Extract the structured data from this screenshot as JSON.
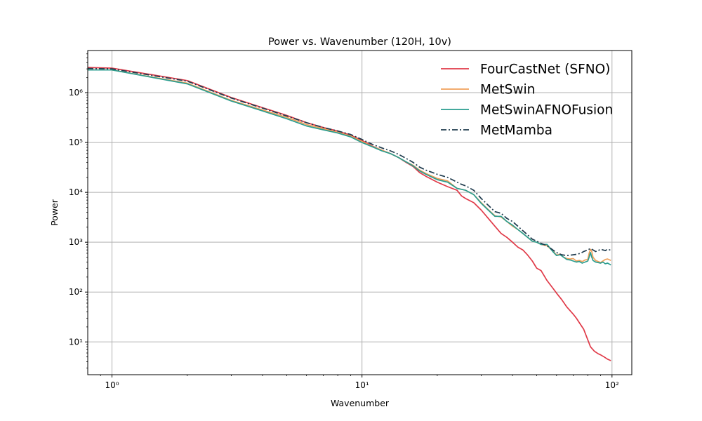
{
  "chart_data": {
    "type": "line",
    "title": "Power vs. Wavenumber (120H, 10v)",
    "xlabel": "Wavenumber",
    "ylabel": "Power",
    "xscale": "log",
    "yscale": "log",
    "xlim": [
      0.8,
      120
    ],
    "ylim": [
      2.2,
      7000000
    ],
    "grid": true,
    "legend_position": "top-right",
    "x_ticks": [
      {
        "value": 1,
        "label": "10⁰"
      },
      {
        "value": 10,
        "label": "10¹"
      },
      {
        "value": 100,
        "label": "10²"
      }
    ],
    "y_ticks": [
      {
        "value": 10,
        "label": "10¹"
      },
      {
        "value": 100,
        "label": "10²"
      },
      {
        "value": 1000,
        "label": "10³"
      },
      {
        "value": 10000,
        "label": "10⁴"
      },
      {
        "value": 100000,
        "label": "10⁵"
      },
      {
        "value": 1000000,
        "label": "10⁶"
      }
    ],
    "series": [
      {
        "name": "FourCastNet (SFNO)",
        "color": "#e03a48",
        "dash": "solid",
        "x": [
          0.8,
          1,
          2,
          3,
          4,
          5,
          6,
          7,
          8,
          9,
          10,
          11,
          12,
          13,
          14,
          15,
          16,
          17,
          18,
          20,
          22,
          24,
          25,
          26,
          28,
          30,
          32,
          34,
          36,
          38,
          40,
          42,
          44,
          46,
          48,
          50,
          52,
          55,
          58,
          60,
          63,
          66,
          70,
          72,
          75,
          77,
          80,
          82,
          85,
          88,
          90,
          93,
          96,
          99
        ],
        "values": [
          3200000,
          3100000,
          1750000,
          800000,
          500000,
          350000,
          250000,
          200000,
          170000,
          140000,
          110000,
          85000,
          70000,
          60000,
          50000,
          40000,
          33000,
          25000,
          21000,
          16000,
          13000,
          11000,
          8500,
          7500,
          6200,
          4400,
          3000,
          2100,
          1500,
          1250,
          1000,
          800,
          700,
          550,
          420,
          300,
          270,
          170,
          120,
          95,
          70,
          50,
          36,
          30,
          22,
          18,
          11,
          8,
          6.5,
          5.8,
          5.5,
          5.0,
          4.5,
          4.2
        ]
      },
      {
        "name": "MetSwin",
        "color": "#f0a05a",
        "dash": "solid",
        "x": [
          0.8,
          1,
          2,
          3,
          4,
          5,
          6,
          7,
          8,
          9,
          10,
          11,
          12,
          13,
          14,
          15,
          16,
          17,
          18,
          20,
          22,
          24,
          25,
          26,
          28,
          30,
          32,
          34,
          36,
          38,
          40,
          42,
          44,
          46,
          48,
          50,
          52,
          55,
          57,
          58,
          60,
          62,
          64,
          66,
          68,
          70,
          72,
          74,
          76,
          78,
          80,
          81,
          82,
          83,
          84,
          86,
          88,
          90,
          92,
          94,
          96,
          98,
          99
        ],
        "values": [
          2850000,
          2850000,
          1550000,
          700000,
          450000,
          320000,
          230000,
          190000,
          160000,
          135000,
          105000,
          83000,
          70000,
          60000,
          50000,
          41000,
          35000,
          28000,
          24000,
          19000,
          17000,
          12000,
          11500,
          11000,
          9000,
          6200,
          4500,
          3400,
          3200,
          2600,
          2100,
          1800,
          1500,
          1250,
          1050,
          1000,
          900,
          850,
          720,
          670,
          550,
          580,
          500,
          470,
          460,
          470,
          420,
          430,
          410,
          440,
          450,
          600,
          720,
          650,
          500,
          430,
          410,
          390,
          420,
          450,
          460,
          440,
          430
        ]
      },
      {
        "name": "MetSwinAFNOFusion",
        "color": "#2a9d8f",
        "dash": "solid",
        "x": [
          0.8,
          1,
          2,
          3,
          4,
          5,
          6,
          7,
          8,
          9,
          10,
          11,
          12,
          13,
          14,
          15,
          16,
          17,
          18,
          20,
          22,
          24,
          25,
          26,
          28,
          30,
          32,
          34,
          36,
          38,
          40,
          42,
          44,
          46,
          48,
          50,
          52,
          55,
          57,
          58,
          60,
          62,
          64,
          66,
          68,
          70,
          72,
          74,
          76,
          78,
          80,
          81,
          82,
          83,
          84,
          86,
          88,
          90,
          92,
          94,
          96,
          98,
          99
        ],
        "values": [
          2850000,
          2850000,
          1500000,
          680000,
          430000,
          300000,
          215000,
          180000,
          155000,
          130000,
          100000,
          82000,
          68000,
          60000,
          50000,
          41000,
          34000,
          27000,
          23000,
          18000,
          16000,
          12000,
          11500,
          11000,
          9000,
          6000,
          4400,
          3300,
          3300,
          2600,
          2200,
          1800,
          1500,
          1250,
          1050,
          1000,
          900,
          900,
          720,
          650,
          540,
          560,
          500,
          450,
          440,
          420,
          400,
          410,
          380,
          400,
          420,
          500,
          620,
          500,
          430,
          400,
          390,
          380,
          400,
          370,
          380,
          360,
          350
        ]
      },
      {
        "name": "MetMamba",
        "color": "#1f3b4d",
        "dash": "dashdot",
        "x": [
          0.8,
          1,
          2,
          3,
          4,
          5,
          6,
          7,
          8,
          9,
          10,
          11,
          12,
          13,
          14,
          15,
          16,
          17,
          18,
          20,
          22,
          24,
          25,
          26,
          28,
          30,
          32,
          34,
          36,
          38,
          40,
          42,
          44,
          46,
          48,
          50,
          52,
          55,
          58,
          60,
          63,
          66,
          70,
          72,
          75,
          77,
          80,
          82,
          84,
          86,
          88,
          90,
          92,
          94,
          96,
          98,
          99
        ],
        "values": [
          3050000,
          3000000,
          1700000,
          780000,
          490000,
          340000,
          250000,
          200000,
          170000,
          145000,
          115000,
          92000,
          78000,
          68000,
          58000,
          48000,
          40000,
          32000,
          28000,
          23000,
          20000,
          16000,
          14500,
          13500,
          11000,
          7500,
          5500,
          4100,
          3800,
          3000,
          2600,
          2100,
          1700,
          1400,
          1150,
          1050,
          950,
          850,
          700,
          620,
          560,
          540,
          560,
          570,
          600,
          650,
          700,
          750,
          700,
          650,
          680,
          720,
          700,
          680,
          720,
          700,
          700
        ]
      }
    ]
  }
}
